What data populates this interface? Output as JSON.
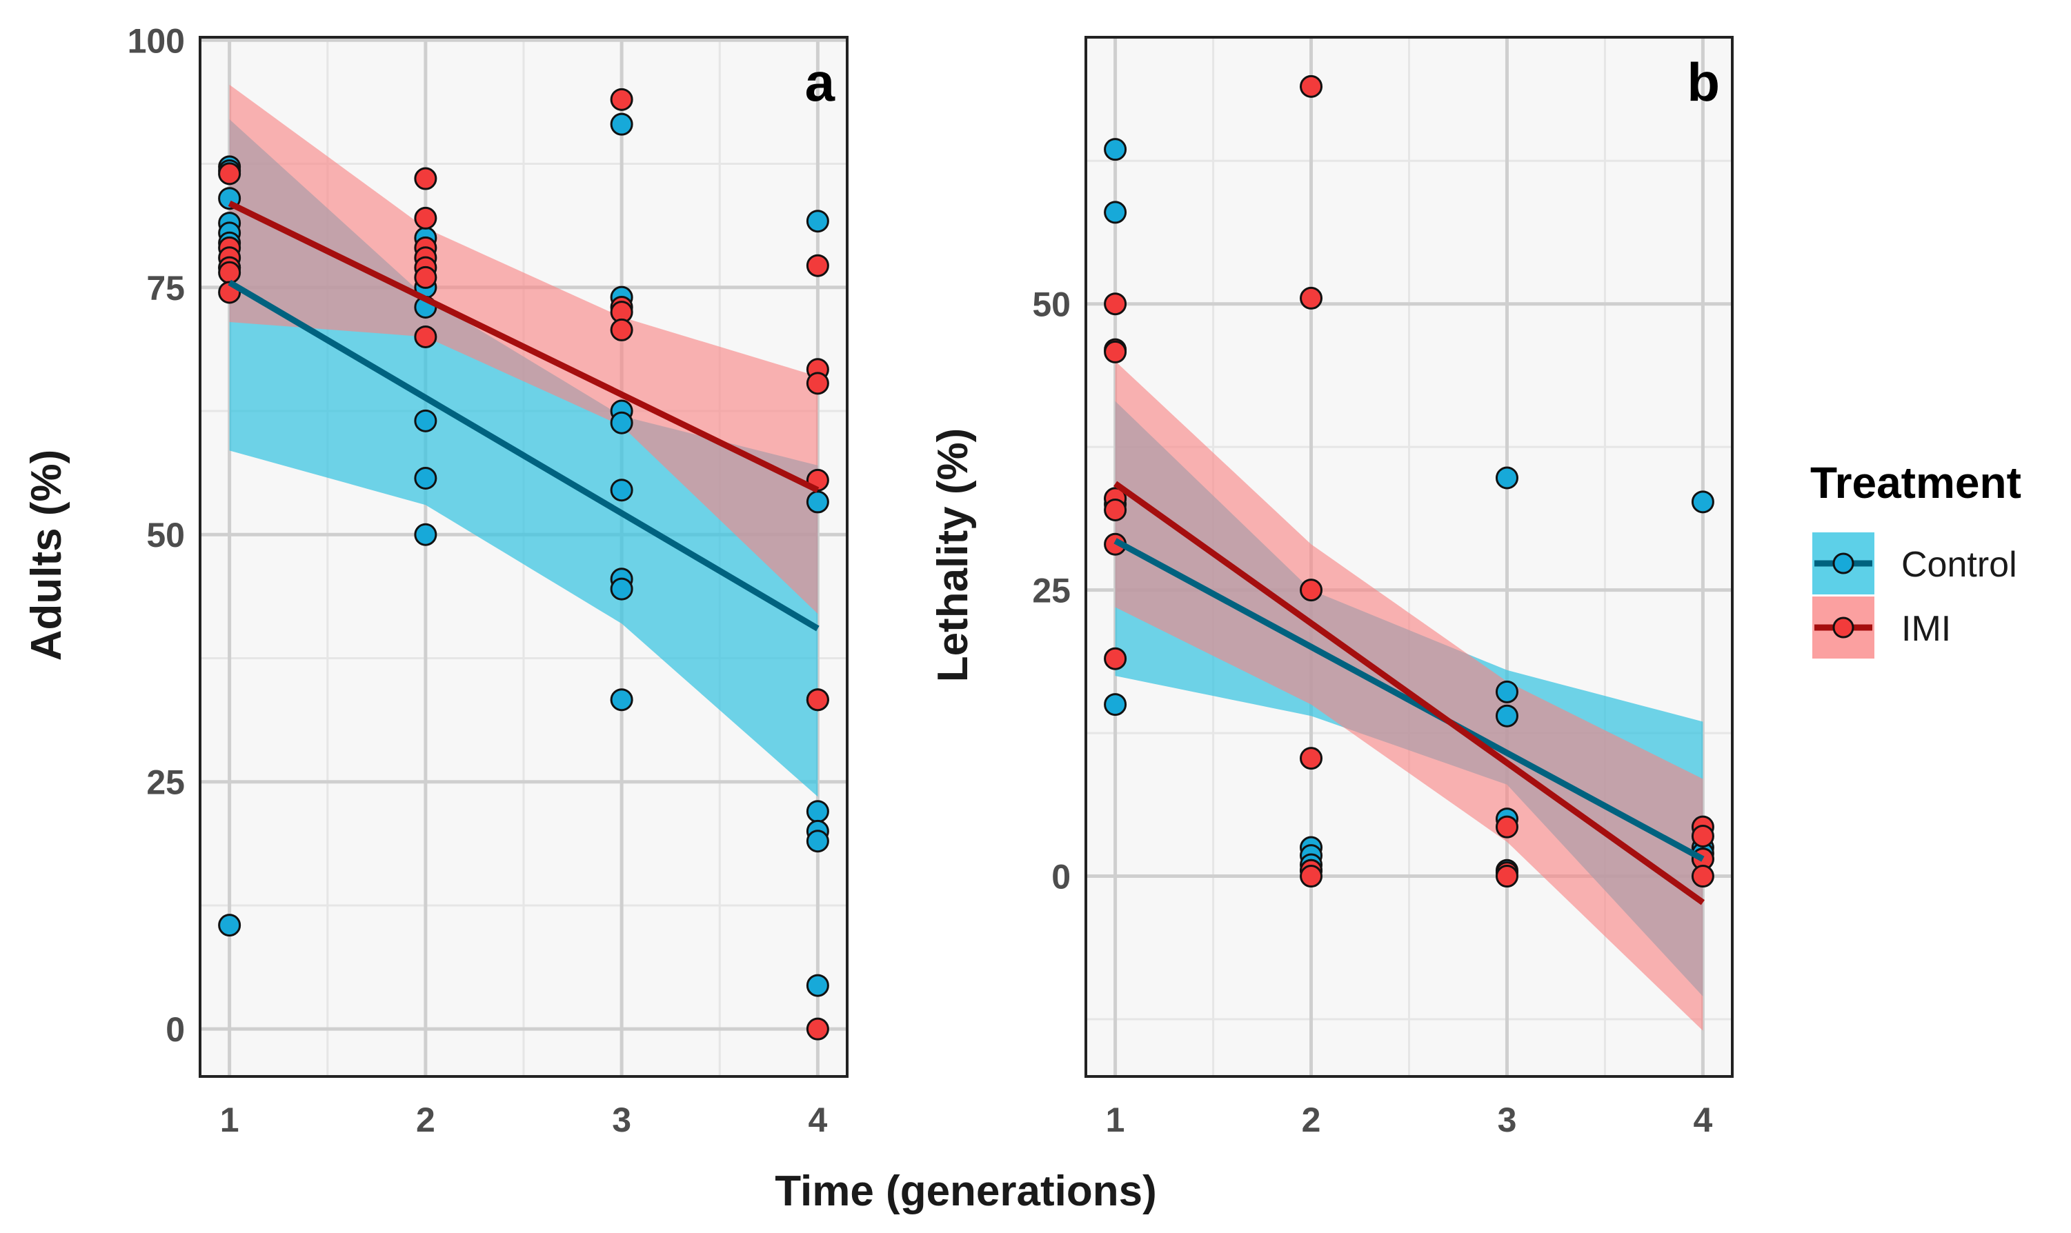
{
  "colors": {
    "control_point": "#17a9d9",
    "control_band": "#38c4e0",
    "control_line": "#00627f",
    "imi_point": "#f23b3b",
    "imi_band": "#f98585",
    "imi_line": "#a50e0e",
    "panel_bg": "#f7f7f7"
  },
  "chart_data": [
    {
      "type": "scatter",
      "panel_label": "a",
      "ylabel": "Adults (%)",
      "xlabel": "Time (generations)",
      "xlim": [
        0.85,
        4.15
      ],
      "ylim": [
        -4.8,
        100.3
      ],
      "xticks": [
        "1",
        "2",
        "3",
        "4"
      ],
      "yticks": [
        "0",
        "25",
        "50",
        "75",
        "100"
      ],
      "grid": true,
      "series": [
        {
          "name": "Control",
          "points": [
            [
              1,
              87.2
            ],
            [
              1,
              86.8
            ],
            [
              1,
              84
            ],
            [
              1,
              81.5
            ],
            [
              1,
              80.5
            ],
            [
              1,
              79.5
            ],
            [
              1,
              77
            ],
            [
              1,
              10.5
            ],
            [
              2,
              80
            ],
            [
              2,
              75
            ],
            [
              2,
              73
            ],
            [
              2,
              61.5
            ],
            [
              2,
              55.7
            ],
            [
              2,
              50
            ],
            [
              3,
              91.5
            ],
            [
              3,
              74
            ],
            [
              3,
              62.5
            ],
            [
              3,
              61.3
            ],
            [
              3,
              54.5
            ],
            [
              3,
              45.5
            ],
            [
              3,
              44.5
            ],
            [
              3,
              33.3
            ],
            [
              4,
              81.7
            ],
            [
              4,
              53.3
            ],
            [
              4,
              33.3
            ],
            [
              4,
              22
            ],
            [
              4,
              20
            ],
            [
              4,
              19
            ],
            [
              4,
              4.4
            ]
          ],
          "fit": [
            [
              1,
              75.5
            ],
            [
              4,
              40.5
            ]
          ],
          "ci_lower": [
            58.5,
            53,
            41,
            23.5
          ],
          "ci_upper": [
            92,
            74,
            62,
            57
          ]
        },
        {
          "name": "IMI",
          "points": [
            [
              1,
              86.5
            ],
            [
              1,
              79
            ],
            [
              1,
              78
            ],
            [
              1,
              77
            ],
            [
              1,
              76.5
            ],
            [
              1,
              74.5
            ],
            [
              2,
              86
            ],
            [
              2,
              82
            ],
            [
              2,
              79
            ],
            [
              2,
              78
            ],
            [
              2,
              77
            ],
            [
              2,
              76
            ],
            [
              2,
              70
            ],
            [
              3,
              94
            ],
            [
              3,
              73
            ],
            [
              3,
              72.5
            ],
            [
              3,
              70.7
            ],
            [
              4,
              77.2
            ],
            [
              4,
              66.7
            ],
            [
              4,
              65.3
            ],
            [
              4,
              55.5
            ],
            [
              4,
              33.3
            ],
            [
              4,
              0
            ]
          ],
          "fit": [
            [
              1,
              83.5
            ],
            [
              4,
              54.5
            ]
          ],
          "ci_lower": [
            71.5,
            70,
            61,
            42
          ],
          "ci_upper": [
            95.5,
            81,
            72,
            66
          ]
        }
      ]
    },
    {
      "type": "scatter",
      "panel_label": "b",
      "ylabel": "Lethality (%)",
      "xlabel": "Time (generations)",
      "xlim": [
        0.85,
        4.15
      ],
      "ylim": [
        -17.5,
        73.3
      ],
      "xticks": [
        "1",
        "2",
        "3",
        "4"
      ],
      "yticks": [
        "0",
        "25",
        "50"
      ],
      "grid": true,
      "series": [
        {
          "name": "Control",
          "points": [
            [
              1,
              63.5
            ],
            [
              1,
              58
            ],
            [
              1,
              33
            ],
            [
              1,
              32.5
            ],
            [
              1,
              15
            ],
            [
              2,
              2.5
            ],
            [
              2,
              1.8
            ],
            [
              2,
              1
            ],
            [
              2,
              0.5
            ],
            [
              3,
              34.8
            ],
            [
              3,
              16.1
            ],
            [
              3,
              14
            ],
            [
              3,
              5
            ],
            [
              3,
              0.5
            ],
            [
              4,
              32.7
            ],
            [
              4,
              2.5
            ],
            [
              4,
              2
            ],
            [
              4,
              1.5
            ]
          ],
          "fit": [
            [
              1,
              29.3
            ],
            [
              4,
              1.5
            ]
          ],
          "ci_lower": [
            17.5,
            14,
            8,
            -10.5
          ],
          "ci_upper": [
            41.5,
            25,
            18,
            13.5
          ]
        },
        {
          "name": "IMI",
          "points": [
            [
              1,
              50
            ],
            [
              1,
              46
            ],
            [
              1,
              45.8
            ],
            [
              1,
              33
            ],
            [
              1,
              32
            ],
            [
              1,
              29
            ],
            [
              1,
              19
            ],
            [
              2,
              69
            ],
            [
              2,
              50.5
            ],
            [
              2,
              25
            ],
            [
              2,
              10.3
            ],
            [
              2,
              0.5
            ],
            [
              2,
              0
            ],
            [
              3,
              4.3
            ],
            [
              3,
              0.3
            ],
            [
              3,
              0
            ],
            [
              4,
              4.3
            ],
            [
              4,
              3.5
            ],
            [
              4,
              1.5
            ],
            [
              4,
              0
            ]
          ],
          "fit": [
            [
              1,
              34.3
            ],
            [
              4,
              -2.3
            ]
          ],
          "ci_lower": [
            23.5,
            15,
            3,
            -13.5
          ],
          "ci_upper": [
            45,
            29,
            17,
            8.5
          ]
        }
      ]
    }
  ],
  "legend": {
    "title": "Treatment",
    "placement": "right",
    "items": [
      {
        "label": "Control"
      },
      {
        "label": "IMI"
      }
    ]
  },
  "xlabel": "Time (generations)"
}
